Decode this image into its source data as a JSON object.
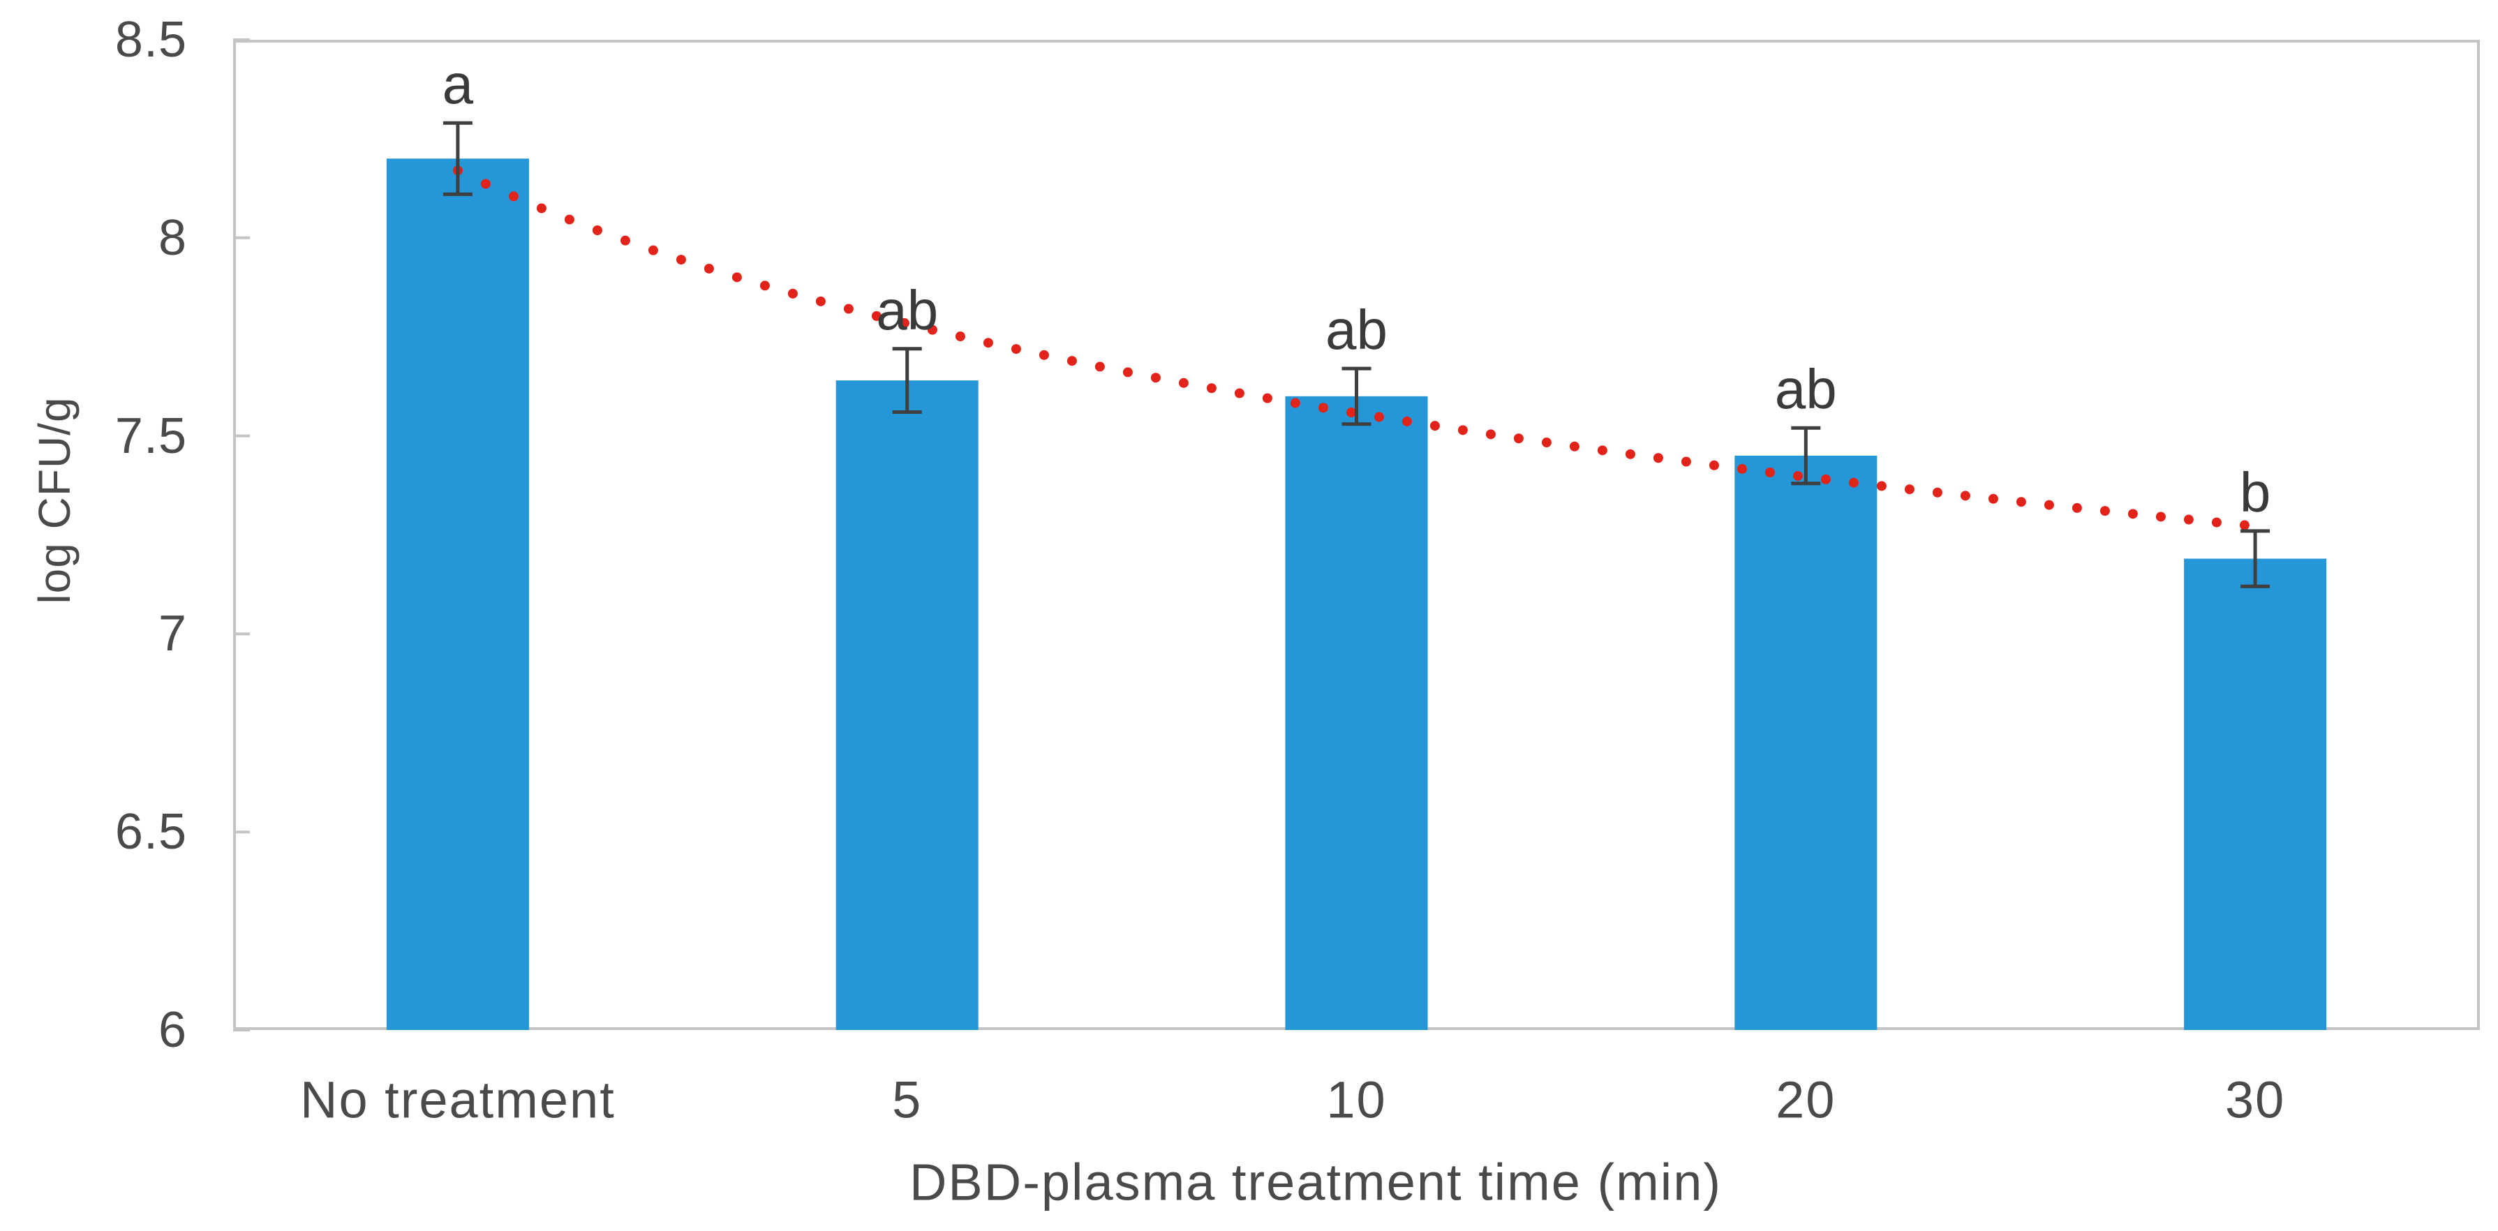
{
  "chart_data": {
    "type": "bar",
    "title": "",
    "xlabel": "DBD-plasma treatment time (min)",
    "ylabel": "log CFU/g",
    "categories": [
      "No treatment",
      "5",
      "10",
      "20",
      "30"
    ],
    "values": [
      8.2,
      7.64,
      7.6,
      7.45,
      7.19
    ],
    "errors": [
      0.09,
      0.08,
      0.07,
      0.07,
      0.07
    ],
    "sig_letters": [
      "a",
      "ab",
      "ab",
      "ab",
      "b"
    ],
    "ylim": [
      6,
      8.5
    ],
    "y_ticks": [
      8.5,
      8,
      7.5,
      7,
      6.5,
      6
    ],
    "grid": false,
    "legend": "none",
    "trendline": {
      "type": "logarithmic",
      "style": "dotted",
      "color": "#E2231A",
      "a": 8.17,
      "b": 0.558,
      "equation": "y = 8.17 - 0.558*ln(category_index)"
    },
    "colors": {
      "bar": "#2596D7",
      "axis": "#C4C4C4",
      "error_bar": "#3F3F3F",
      "tick_label": "#4A4A4A",
      "axis_title": "#4A4A4A",
      "letter": "#3A3A3A"
    }
  }
}
